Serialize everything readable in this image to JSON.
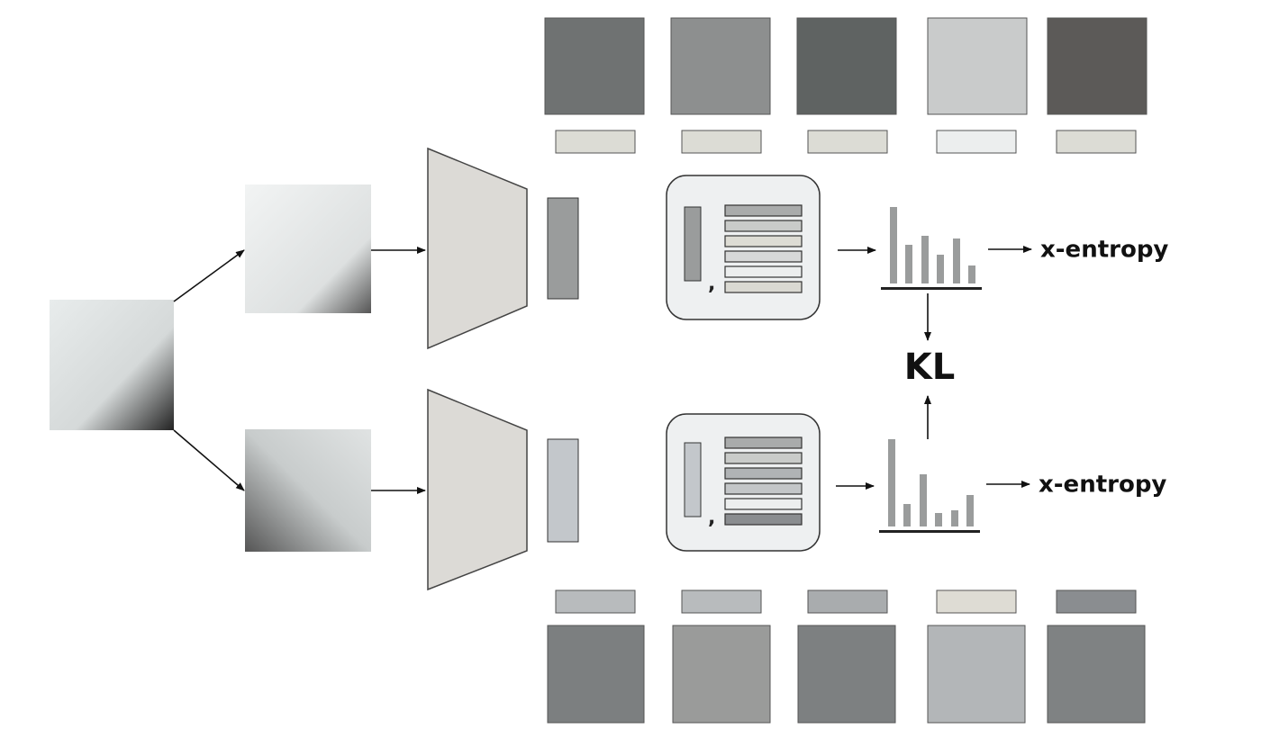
{
  "outputs": [
    {
      "label": "x-entropy",
      "separator": ","
    },
    {
      "label": "x-entropy",
      "separator": ","
    }
  ],
  "divergence": "KL"
}
